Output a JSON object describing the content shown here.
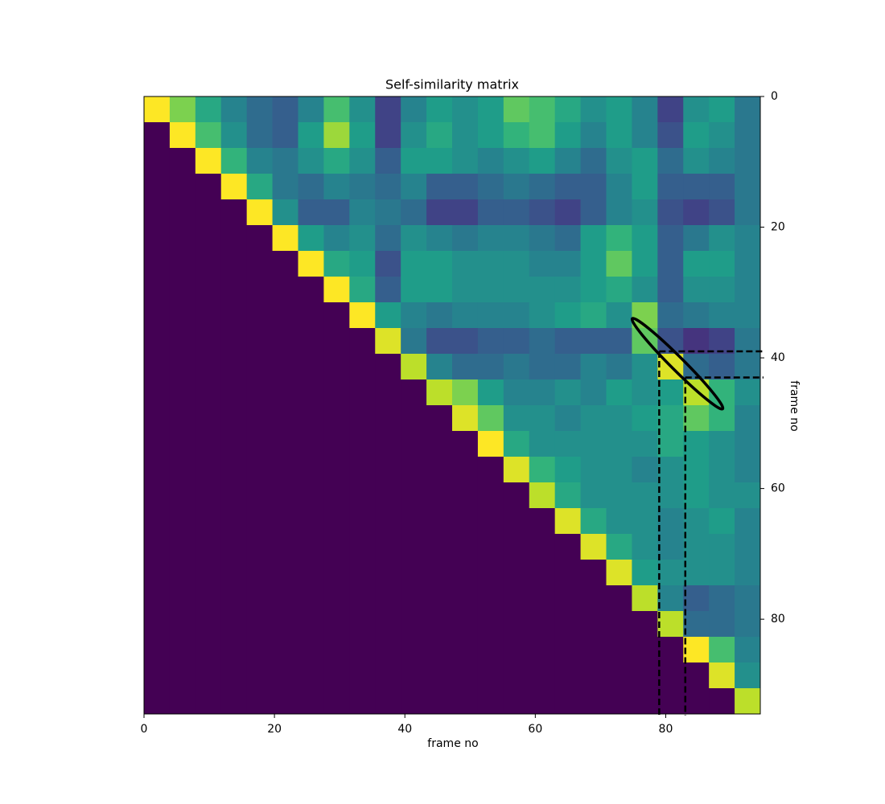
{
  "chart_data": {
    "type": "heatmap",
    "title": "Self-similarity matrix",
    "xlabel": "frame no",
    "ylabel": "frame no",
    "colormap": "viridis",
    "xlim": [
      0,
      94.5
    ],
    "ylim": [
      94.5,
      0
    ],
    "xticks": [
      0,
      20,
      40,
      60,
      80
    ],
    "yticks": [
      0,
      20,
      40,
      60,
      80
    ],
    "z": [
      [
        1.0,
        0.8,
        0.6,
        0.45,
        0.35,
        0.3,
        0.45,
        0.7,
        0.5,
        0.2,
        0.45,
        0.55,
        0.5,
        0.55,
        0.75,
        0.7,
        0.6,
        0.5,
        0.55,
        0.45,
        0.2,
        0.5,
        0.55,
        0.4
      ],
      [
        0,
        1.0,
        0.7,
        0.5,
        0.35,
        0.3,
        0.55,
        0.85,
        0.55,
        0.2,
        0.5,
        0.6,
        0.5,
        0.55,
        0.65,
        0.7,
        0.55,
        0.45,
        0.55,
        0.45,
        0.25,
        0.55,
        0.5,
        0.4
      ],
      [
        0,
        0,
        1.0,
        0.65,
        0.45,
        0.4,
        0.5,
        0.6,
        0.5,
        0.3,
        0.55,
        0.55,
        0.5,
        0.45,
        0.5,
        0.55,
        0.45,
        0.35,
        0.5,
        0.55,
        0.35,
        0.5,
        0.45,
        0.4
      ],
      [
        0,
        0,
        0,
        1.0,
        0.6,
        0.4,
        0.35,
        0.45,
        0.4,
        0.35,
        0.45,
        0.3,
        0.3,
        0.35,
        0.4,
        0.35,
        0.3,
        0.3,
        0.45,
        0.55,
        0.3,
        0.3,
        0.3,
        0.4
      ],
      [
        0,
        0,
        0,
        0,
        1.0,
        0.5,
        0.3,
        0.3,
        0.45,
        0.4,
        0.35,
        0.2,
        0.2,
        0.3,
        0.3,
        0.25,
        0.2,
        0.3,
        0.45,
        0.5,
        0.25,
        0.2,
        0.25,
        0.4
      ],
      [
        0,
        0,
        0,
        0,
        0,
        1.0,
        0.55,
        0.45,
        0.5,
        0.35,
        0.5,
        0.45,
        0.4,
        0.45,
        0.45,
        0.4,
        0.35,
        0.55,
        0.65,
        0.55,
        0.3,
        0.4,
        0.5,
        0.45
      ],
      [
        0,
        0,
        0,
        0,
        0,
        0,
        1.0,
        0.6,
        0.55,
        0.25,
        0.55,
        0.55,
        0.5,
        0.5,
        0.5,
        0.45,
        0.45,
        0.55,
        0.75,
        0.55,
        0.3,
        0.55,
        0.55,
        0.45
      ],
      [
        0,
        0,
        0,
        0,
        0,
        0,
        0,
        1.0,
        0.6,
        0.3,
        0.55,
        0.55,
        0.5,
        0.5,
        0.5,
        0.5,
        0.5,
        0.55,
        0.6,
        0.5,
        0.3,
        0.5,
        0.5,
        0.45
      ],
      [
        0,
        0,
        0,
        0,
        0,
        0,
        0,
        0,
        1.0,
        0.55,
        0.45,
        0.4,
        0.45,
        0.45,
        0.45,
        0.5,
        0.55,
        0.6,
        0.5,
        0.8,
        0.35,
        0.4,
        0.45,
        0.45
      ],
      [
        0,
        0,
        0,
        0,
        0,
        0,
        0,
        0,
        0,
        0.95,
        0.4,
        0.25,
        0.25,
        0.3,
        0.3,
        0.35,
        0.3,
        0.3,
        0.3,
        0.75,
        0.25,
        0.15,
        0.2,
        0.4
      ],
      [
        0,
        0,
        0,
        0,
        0,
        0,
        0,
        0,
        0,
        0,
        0.9,
        0.45,
        0.35,
        0.35,
        0.4,
        0.35,
        0.35,
        0.45,
        0.4,
        0.5,
        0.95,
        0.35,
        0.3,
        0.4
      ],
      [
        0,
        0,
        0,
        0,
        0,
        0,
        0,
        0,
        0,
        0,
        0,
        0.9,
        0.8,
        0.55,
        0.45,
        0.45,
        0.5,
        0.45,
        0.55,
        0.5,
        0.55,
        0.9,
        0.65,
        0.5
      ],
      [
        0,
        0,
        0,
        0,
        0,
        0,
        0,
        0,
        0,
        0,
        0,
        0,
        0.95,
        0.75,
        0.5,
        0.5,
        0.45,
        0.5,
        0.5,
        0.55,
        0.6,
        0.75,
        0.65,
        0.45
      ],
      [
        0,
        0,
        0,
        0,
        0,
        0,
        0,
        0,
        0,
        0,
        0,
        0,
        0,
        1.0,
        0.6,
        0.5,
        0.5,
        0.5,
        0.5,
        0.5,
        0.6,
        0.55,
        0.5,
        0.45
      ],
      [
        0,
        0,
        0,
        0,
        0,
        0,
        0,
        0,
        0,
        0,
        0,
        0,
        0,
        0,
        0.95,
        0.65,
        0.55,
        0.5,
        0.5,
        0.45,
        0.5,
        0.55,
        0.5,
        0.45
      ],
      [
        0,
        0,
        0,
        0,
        0,
        0,
        0,
        0,
        0,
        0,
        0,
        0,
        0,
        0,
        0,
        0.9,
        0.6,
        0.5,
        0.5,
        0.5,
        0.5,
        0.55,
        0.5,
        0.5
      ],
      [
        0,
        0,
        0,
        0,
        0,
        0,
        0,
        0,
        0,
        0,
        0,
        0,
        0,
        0,
        0,
        0,
        0.95,
        0.6,
        0.5,
        0.5,
        0.45,
        0.5,
        0.55,
        0.45
      ],
      [
        0,
        0,
        0,
        0,
        0,
        0,
        0,
        0,
        0,
        0,
        0,
        0,
        0,
        0,
        0,
        0,
        0,
        0.95,
        0.6,
        0.5,
        0.45,
        0.5,
        0.5,
        0.45
      ],
      [
        0,
        0,
        0,
        0,
        0,
        0,
        0,
        0,
        0,
        0,
        0,
        0,
        0,
        0,
        0,
        0,
        0,
        0,
        0.95,
        0.55,
        0.5,
        0.5,
        0.5,
        0.45
      ],
      [
        0,
        0,
        0,
        0,
        0,
        0,
        0,
        0,
        0,
        0,
        0,
        0,
        0,
        0,
        0,
        0,
        0,
        0,
        0,
        0.9,
        0.45,
        0.3,
        0.35,
        0.4
      ],
      [
        0,
        0,
        0,
        0,
        0,
        0,
        0,
        0,
        0,
        0,
        0,
        0,
        0,
        0,
        0,
        0,
        0,
        0,
        0,
        0,
        0.9,
        0.35,
        0.35,
        0.4
      ],
      [
        0,
        0,
        0,
        0,
        0,
        0,
        0,
        0,
        0,
        0,
        0,
        0,
        0,
        0,
        0,
        0,
        0,
        0,
        0,
        0,
        0,
        1.0,
        0.7,
        0.45
      ],
      [
        0,
        0,
        0,
        0,
        0,
        0,
        0,
        0,
        0,
        0,
        0,
        0,
        0,
        0,
        0,
        0,
        0,
        0,
        0,
        0,
        0,
        0,
        0.95,
        0.5
      ],
      [
        0,
        0,
        0,
        0,
        0,
        0,
        0,
        0,
        0,
        0,
        0,
        0,
        0,
        0,
        0,
        0,
        0,
        0,
        0,
        0,
        0,
        0,
        0,
        0.9
      ]
    ],
    "highlights": [
      {
        "x": 79,
        "y": 39
      },
      {
        "x": 83,
        "y": 43
      }
    ],
    "ellipse": {
      "cx": 81.8,
      "cy": 40.9,
      "rx": 9.8,
      "ry": 1.0,
      "angle": 45
    }
  }
}
